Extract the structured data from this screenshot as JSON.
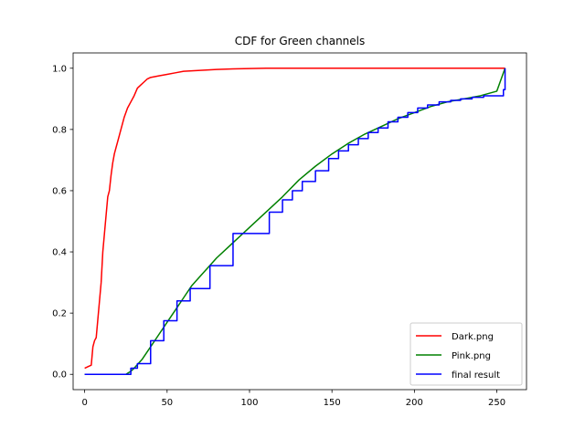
{
  "chart_data": {
    "type": "line",
    "title": "CDF for Green channels",
    "xlabel": "",
    "ylabel": "",
    "xlim": [
      -7,
      268
    ],
    "ylim": [
      -0.05,
      1.05
    ],
    "xticks": [
      0,
      50,
      100,
      150,
      200,
      250
    ],
    "xtick_labels": [
      "0",
      "50",
      "100",
      "150",
      "200",
      "250"
    ],
    "yticks": [
      0.0,
      0.2,
      0.4,
      0.6,
      0.8,
      1.0
    ],
    "ytick_labels": [
      "0.0",
      "0.2",
      "0.4",
      "0.6",
      "0.8",
      "1.0"
    ],
    "grid": false,
    "legend_position": "bottom-right",
    "series": [
      {
        "name": "Dark.png",
        "color": "#ff0000",
        "step": false,
        "x": [
          0,
          2,
          4,
          5,
          6,
          7,
          8,
          9,
          10,
          11,
          12,
          13,
          14,
          15,
          16,
          17,
          18,
          19,
          20,
          22,
          24,
          26,
          28,
          30,
          32,
          34,
          36,
          38,
          40,
          45,
          50,
          55,
          60,
          70,
          80,
          90,
          100,
          110,
          120,
          150,
          200,
          255
        ],
        "y": [
          0.02,
          0.025,
          0.03,
          0.09,
          0.11,
          0.12,
          0.18,
          0.24,
          0.3,
          0.4,
          0.46,
          0.52,
          0.58,
          0.6,
          0.65,
          0.69,
          0.72,
          0.74,
          0.76,
          0.8,
          0.84,
          0.87,
          0.89,
          0.91,
          0.935,
          0.945,
          0.955,
          0.965,
          0.97,
          0.975,
          0.98,
          0.985,
          0.99,
          0.993,
          0.996,
          0.998,
          0.999,
          1.0,
          1.0,
          1.0,
          1.0,
          1.0
        ]
      },
      {
        "name": "Pink.png",
        "color": "#008000",
        "step": false,
        "x": [
          0,
          25,
          28,
          30,
          35,
          40,
          45,
          50,
          55,
          60,
          65,
          70,
          75,
          80,
          90,
          100,
          110,
          120,
          130,
          140,
          150,
          160,
          170,
          180,
          190,
          200,
          210,
          220,
          230,
          240,
          250,
          255
        ],
        "y": [
          0.0,
          0.0,
          0.01,
          0.02,
          0.05,
          0.09,
          0.13,
          0.17,
          0.21,
          0.25,
          0.29,
          0.32,
          0.35,
          0.38,
          0.43,
          0.48,
          0.53,
          0.58,
          0.635,
          0.68,
          0.72,
          0.755,
          0.785,
          0.81,
          0.835,
          0.855,
          0.875,
          0.89,
          0.9,
          0.91,
          0.925,
          1.0
        ]
      },
      {
        "name": "final result",
        "color": "#0000ff",
        "step": true,
        "x": [
          0,
          28,
          32,
          40,
          48,
          56,
          64,
          76,
          90,
          112,
          120,
          126,
          132,
          140,
          148,
          154,
          160,
          166,
          172,
          178,
          184,
          190,
          196,
          202,
          208,
          215,
          222,
          228,
          235,
          242,
          254,
          255
        ],
        "y": [
          0.0,
          0.02,
          0.035,
          0.11,
          0.175,
          0.24,
          0.28,
          0.355,
          0.46,
          0.53,
          0.57,
          0.6,
          0.63,
          0.665,
          0.705,
          0.73,
          0.75,
          0.77,
          0.79,
          0.805,
          0.825,
          0.84,
          0.855,
          0.87,
          0.88,
          0.89,
          0.895,
          0.9,
          0.905,
          0.91,
          0.93,
          1.0
        ]
      }
    ]
  }
}
